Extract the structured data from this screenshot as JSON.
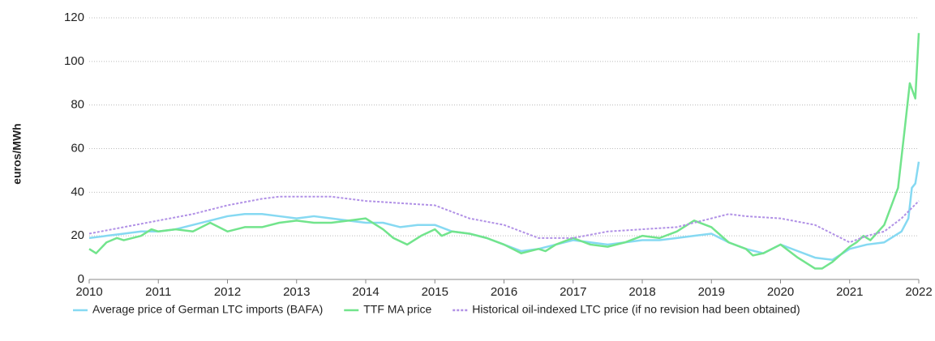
{
  "chart_data": {
    "type": "line",
    "y_label": "euros/MWh",
    "xlim": [
      2010,
      2022
    ],
    "xticks": [
      2010,
      2011,
      2012,
      2013,
      2014,
      2015,
      2016,
      2017,
      2018,
      2019,
      2020,
      2021,
      2022
    ],
    "ylim": [
      0,
      120
    ],
    "yticks": [
      0,
      20,
      40,
      60,
      80,
      100,
      120
    ],
    "grid": true,
    "legend": "bottom",
    "series": [
      {
        "name": "Average price of German LTC imports (BAFA)",
        "color": "#86d9f2",
        "dash": false,
        "x": [
          2010,
          2010.25,
          2010.5,
          2010.75,
          2011,
          2011.25,
          2011.5,
          2011.75,
          2012,
          2012.25,
          2012.5,
          2012.75,
          2013,
          2013.25,
          2013.5,
          2013.75,
          2014,
          2014.25,
          2014.5,
          2014.75,
          2015,
          2015.25,
          2015.5,
          2015.75,
          2016,
          2016.25,
          2016.5,
          2016.75,
          2017,
          2017.25,
          2017.5,
          2017.75,
          2018,
          2018.25,
          2018.5,
          2018.75,
          2019,
          2019.25,
          2019.5,
          2019.75,
          2020,
          2020.25,
          2020.5,
          2020.75,
          2021,
          2021.25,
          2021.5,
          2021.75,
          2021.85,
          2021.9,
          2021.95,
          2022
        ],
        "values": [
          19,
          20,
          21,
          22,
          22,
          23,
          25,
          27,
          29,
          30,
          30,
          29,
          28,
          29,
          28,
          27,
          26,
          26,
          24,
          25,
          25,
          22,
          21,
          19,
          16,
          13,
          14,
          16,
          18,
          17,
          16,
          17,
          18,
          18,
          19,
          20,
          21,
          17,
          14,
          12,
          16,
          13,
          10,
          9,
          14,
          16,
          17,
          22,
          28,
          42,
          44,
          54
        ]
      },
      {
        "name": "TTF MA price",
        "color": "#72e48c",
        "dash": false,
        "x": [
          2010,
          2010.1,
          2010.25,
          2010.4,
          2010.5,
          2010.75,
          2010.9,
          2011,
          2011.25,
          2011.5,
          2011.75,
          2012,
          2012.25,
          2012.5,
          2012.75,
          2013,
          2013.25,
          2013.5,
          2013.75,
          2014,
          2014.25,
          2014.4,
          2014.6,
          2014.8,
          2015,
          2015.1,
          2015.25,
          2015.5,
          2015.75,
          2016,
          2016.25,
          2016.5,
          2016.6,
          2016.75,
          2017,
          2017.25,
          2017.5,
          2017.75,
          2018,
          2018.25,
          2018.5,
          2018.75,
          2019,
          2019.25,
          2019.5,
          2019.6,
          2019.75,
          2020,
          2020.25,
          2020.5,
          2020.6,
          2020.75,
          2021,
          2021.1,
          2021.2,
          2021.3,
          2021.5,
          2021.7,
          2021.8,
          2021.87,
          2021.95,
          2022
        ],
        "values": [
          14,
          12,
          17,
          19,
          18,
          20,
          23,
          22,
          23,
          22,
          26,
          22,
          24,
          24,
          26,
          27,
          26,
          26,
          27,
          28,
          23,
          19,
          16,
          20,
          23,
          20,
          22,
          21,
          19,
          16,
          12,
          14,
          13,
          16,
          19,
          16,
          15,
          17,
          20,
          19,
          22,
          27,
          24,
          17,
          14,
          11,
          12,
          16,
          10,
          5,
          5,
          8,
          15,
          17,
          20,
          18,
          25,
          42,
          70,
          90,
          83,
          113
        ]
      },
      {
        "name": "Historical oil-indexed LTC price (if no revision had been obtained)",
        "color": "#b191e6",
        "dash": true,
        "x": [
          2010,
          2010.5,
          2011,
          2011.5,
          2012,
          2012.5,
          2012.75,
          2013,
          2013.5,
          2014,
          2014.5,
          2015,
          2015.25,
          2015.5,
          2016,
          2016.25,
          2016.5,
          2017,
          2017.5,
          2018,
          2018.5,
          2019,
          2019.25,
          2019.5,
          2020,
          2020.5,
          2020.75,
          2021,
          2021.25,
          2021.5,
          2021.75,
          2022
        ],
        "values": [
          21,
          24,
          27,
          30,
          34,
          37,
          38,
          38,
          38,
          36,
          35,
          34,
          31,
          28,
          25,
          22,
          19,
          19,
          22,
          23,
          24,
          28,
          30,
          29,
          28,
          25,
          21,
          17,
          20,
          22,
          28,
          36
        ]
      }
    ]
  }
}
